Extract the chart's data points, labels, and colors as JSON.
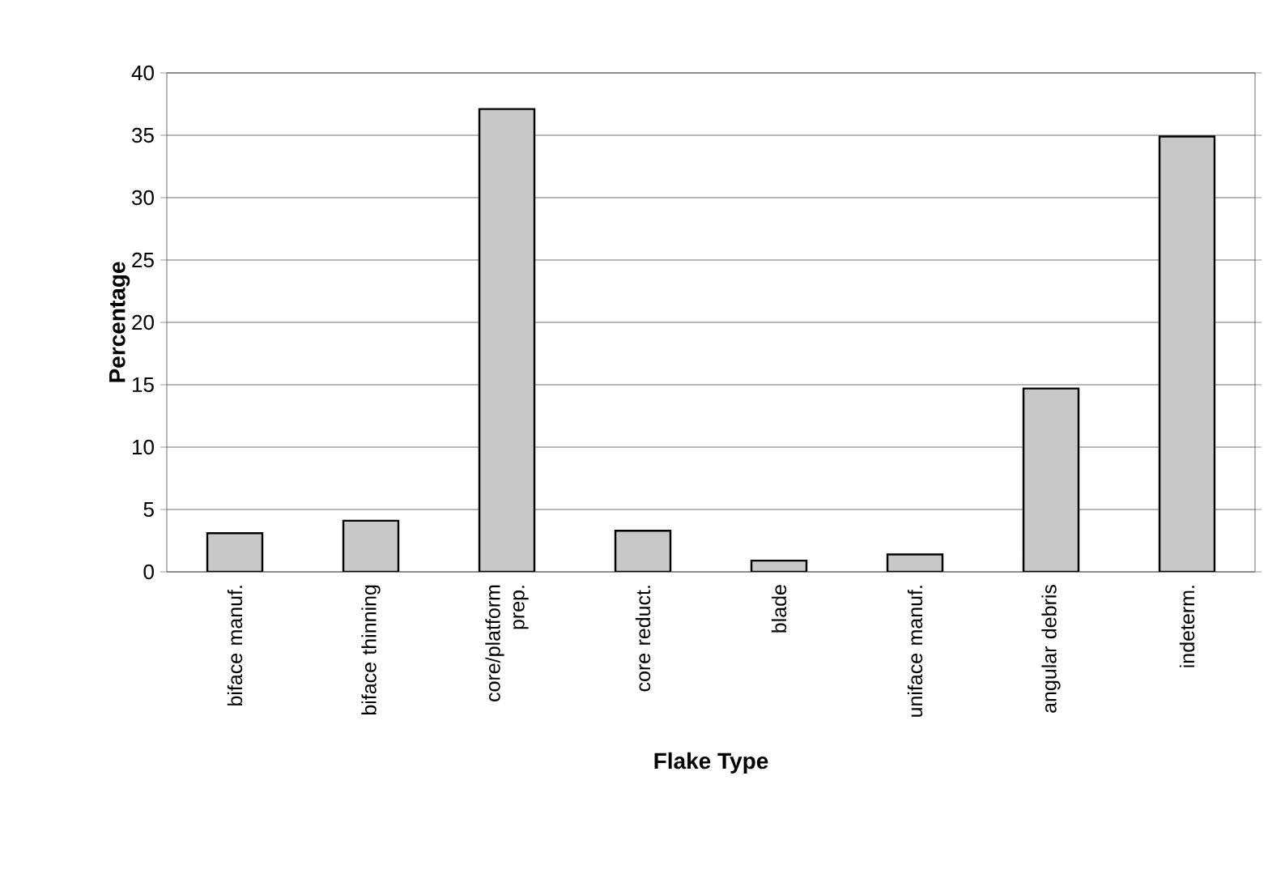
{
  "chart_data": {
    "type": "bar",
    "xlabel": "Flake Type",
    "ylabel": "Percentage",
    "categories": [
      "biface manuf.",
      "biface thinning",
      "core/platform prep.",
      "core reduct.",
      "blade",
      "uniface manuf.",
      "angular debris",
      "indeterm."
    ],
    "values": [
      3.1,
      4.1,
      37.1,
      3.3,
      0.9,
      1.4,
      14.7,
      34.9
    ],
    "color": "#c8c8c8",
    "ylim": [
      0,
      40
    ],
    "yticks": [
      0,
      5,
      10,
      15,
      20,
      25,
      30,
      35,
      40
    ],
    "grid": "y"
  }
}
